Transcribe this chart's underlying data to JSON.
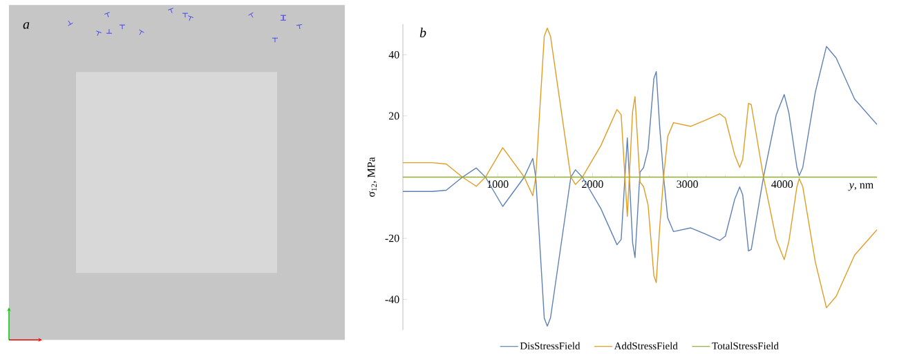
{
  "chart_data": {
    "type": "line",
    "xlabel": "*y*, nm",
    "ylabel": "σ$_{12}$, MPa",
    "annotations": [
      "a",
      "b"
    ],
    "x": [
      0,
      311,
      457,
      628,
      774,
      871,
      1053,
      1280,
      1370,
      1401,
      1491,
      1523,
      1557,
      1771,
      1820,
      1893,
      2088,
      2258,
      2302,
      2367,
      2423,
      2448,
      2501,
      2538,
      2586,
      2647,
      2672,
      2708,
      2750,
      2793,
      2854,
      3036,
      3182,
      3341,
      3401,
      3499,
      3552,
      3584,
      3645,
      3674,
      3803,
      3937,
      4022,
      4071,
      4156,
      4180,
      4217,
      4350,
      4467,
      4569,
      4764,
      5000
    ],
    "series": [
      {
        "name": "DisStressField",
        "color": "#5e81b5",
        "values": [
          -4.7,
          -4.7,
          -4.3,
          0,
          3.0,
          0,
          -9.6,
          0,
          6.1,
          0,
          -46.1,
          -48.7,
          -46,
          0,
          2.4,
          0,
          -10.3,
          -22.1,
          -20.4,
          12.8,
          -21.5,
          -26.3,
          1.6,
          3.1,
          9.1,
          32.2,
          34.5,
          16.6,
          0,
          -13.3,
          -17.8,
          -16.6,
          -18.5,
          -20.7,
          -19.3,
          -7.3,
          -3.2,
          -5.8,
          -24.1,
          -23.7,
          0,
          20.3,
          27.0,
          21.0,
          3.1,
          0.5,
          3.1,
          27.8,
          42.7,
          39.0,
          25.5,
          17.2
        ]
      },
      {
        "name": "AddStressField",
        "color": "#e19c24",
        "values": [
          4.7,
          4.7,
          4.3,
          0,
          -3.0,
          0,
          9.6,
          0,
          -6.1,
          0,
          46.1,
          48.7,
          46,
          0,
          -2.4,
          0,
          10.3,
          22.1,
          20.4,
          -12.8,
          21.5,
          26.3,
          -1.6,
          -3.1,
          -9.1,
          -32.2,
          -34.5,
          -16.6,
          0,
          13.3,
          17.8,
          16.6,
          18.5,
          20.7,
          19.3,
          7.3,
          3.2,
          5.8,
          24.1,
          23.7,
          0,
          -20.3,
          -27.0,
          -21.0,
          -3.1,
          -0.5,
          -3.1,
          -27.8,
          -42.7,
          -39.0,
          -25.5,
          -17.2
        ]
      },
      {
        "name": "TotalStressField",
        "color": "#8fb032",
        "x": [
          0,
          5000
        ],
        "values": [
          0,
          0
        ]
      }
    ],
    "xlim": [
      0,
      5000
    ],
    "ylim": [
      -50,
      50
    ],
    "xticks": [
      1000,
      2000,
      3000,
      4000
    ],
    "yticks": [
      -40,
      -20,
      20,
      40
    ],
    "legend": "bottom"
  }
}
